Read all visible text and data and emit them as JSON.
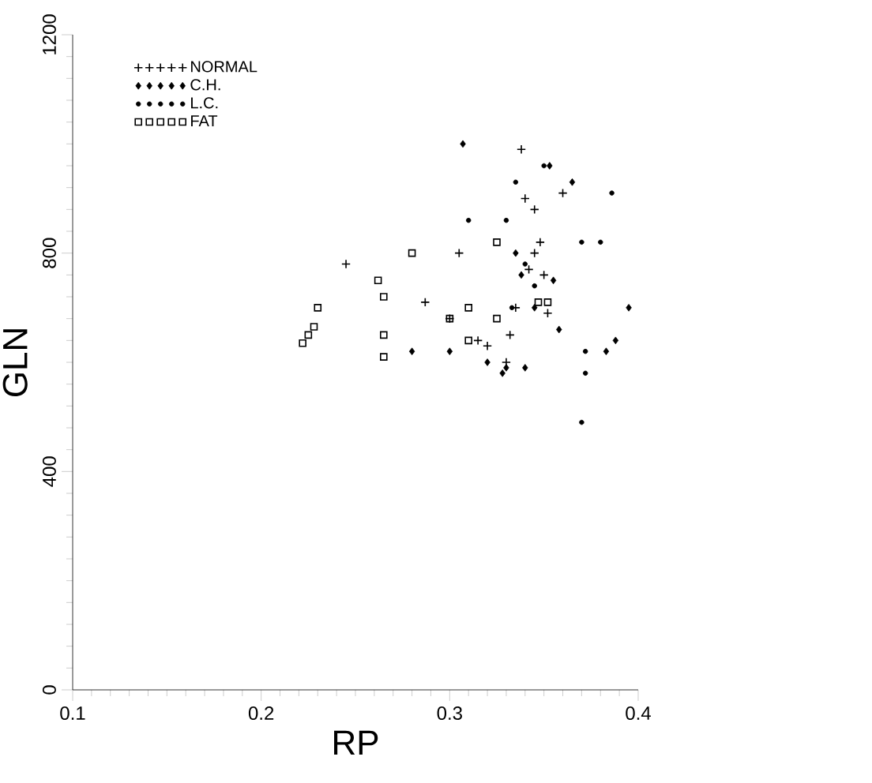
{
  "chart_data": {
    "type": "scatter",
    "xlabel": "RP",
    "ylabel": "GLN",
    "xlim": [
      0.1,
      0.4
    ],
    "ylim": [
      0,
      1200
    ],
    "xticks": [
      0.1,
      0.2,
      0.3,
      0.4
    ],
    "yticks": [
      0,
      400,
      800,
      1200
    ],
    "grid": false,
    "legend": "top left",
    "series": [
      {
        "name": "NORMAL",
        "color": "#000000",
        "marker": "cross",
        "x": [
          0.245,
          0.287,
          0.3,
          0.305,
          0.315,
          0.32,
          0.332,
          0.335,
          0.338,
          0.34,
          0.342,
          0.345,
          0.348,
          0.35,
          0.352,
          0.36,
          0.345,
          0.33
        ],
        "values": [
          780,
          710,
          680,
          800,
          640,
          630,
          650,
          700,
          990,
          900,
          770,
          800,
          820,
          760,
          690,
          910,
          880,
          600
        ]
      },
      {
        "name": "C.H.",
        "color": "#000000",
        "marker": "diamond",
        "x": [
          0.28,
          0.3,
          0.307,
          0.32,
          0.328,
          0.33,
          0.34,
          0.345,
          0.355,
          0.358,
          0.388,
          0.395,
          0.383,
          0.365,
          0.353,
          0.335,
          0.338
        ],
        "values": [
          620,
          620,
          1000,
          600,
          580,
          590,
          590,
          700,
          750,
          660,
          640,
          700,
          620,
          930,
          960,
          800,
          760
        ]
      },
      {
        "name": "L.C.",
        "color": "#000000",
        "marker": "circle",
        "x": [
          0.31,
          0.335,
          0.33,
          0.345,
          0.37,
          0.38,
          0.386,
          0.37,
          0.372,
          0.372,
          0.35,
          0.333,
          0.34
        ],
        "values": [
          860,
          930,
          860,
          740,
          820,
          820,
          910,
          490,
          580,
          620,
          960,
          700,
          780
        ]
      },
      {
        "name": "FAT",
        "color": "#000000",
        "marker": "square",
        "x": [
          0.222,
          0.225,
          0.228,
          0.23,
          0.262,
          0.265,
          0.265,
          0.265,
          0.28,
          0.3,
          0.31,
          0.31,
          0.325,
          0.325,
          0.347,
          0.352
        ],
        "values": [
          635,
          650,
          665,
          700,
          750,
          720,
          650,
          610,
          800,
          680,
          700,
          640,
          820,
          680,
          710,
          710
        ]
      }
    ]
  }
}
